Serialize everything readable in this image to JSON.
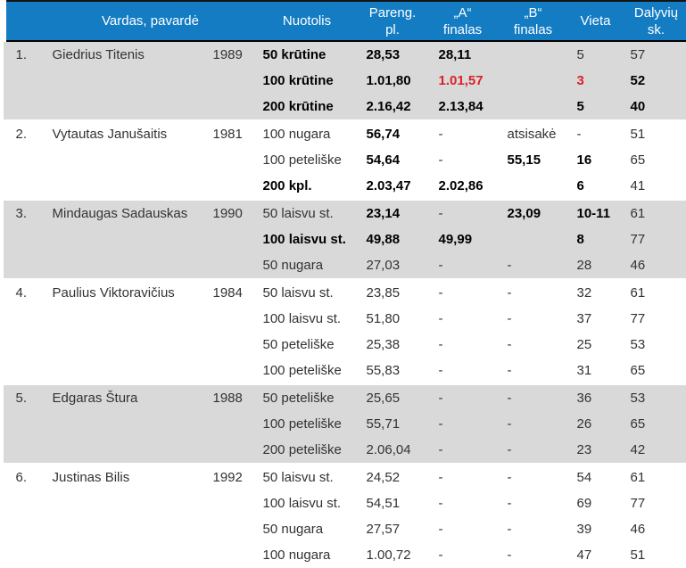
{
  "colors": {
    "header_bg": "#147CC2",
    "header_text": "#FFFFFF",
    "row_alt_bg": "#D9D9D9",
    "row_bg": "#FFFFFF",
    "highlight_red": "#DA2128",
    "divider_black": "#000000"
  },
  "header": {
    "rank": "",
    "name": "Vardas, pavardė",
    "distance": "Nuotolis",
    "prelim": "Pareng.\npl.",
    "a_final": "„A“\nfinalas",
    "b_final": "„B“\nfinalas",
    "place": "Vieta",
    "participants": "Dalyvių\nsk."
  },
  "athletes": [
    {
      "num": "1.",
      "name": "Giedrius Titenis",
      "year": "1989",
      "events": [
        {
          "distance": {
            "text": "50 krūtine",
            "bold": true
          },
          "prelim": {
            "text": "28,53",
            "bold": true
          },
          "a_final": {
            "text": "28,11",
            "bold": true
          },
          "b_final": {
            "text": ""
          },
          "place": {
            "text": "5"
          },
          "participants": {
            "text": "57"
          }
        },
        {
          "distance": {
            "text": "100 krūtine",
            "bold": true
          },
          "prelim": {
            "text": "1.01,80",
            "bold": true
          },
          "a_final": {
            "text": "1.01,57",
            "bold": true,
            "red": true
          },
          "b_final": {
            "text": ""
          },
          "place": {
            "text": "3",
            "bold": true,
            "red": true
          },
          "participants": {
            "text": "52",
            "bold": true
          }
        },
        {
          "distance": {
            "text": "200 krūtine",
            "bold": true
          },
          "prelim": {
            "text": "2.16,42",
            "bold": true
          },
          "a_final": {
            "text": "2.13,84",
            "bold": true
          },
          "b_final": {
            "text": ""
          },
          "place": {
            "text": "5",
            "bold": true
          },
          "participants": {
            "text": "40",
            "bold": true
          }
        }
      ]
    },
    {
      "num": "2.",
      "name": "Vytautas Janušaitis",
      "year": "1981",
      "events": [
        {
          "distance": {
            "text": "100 nugara"
          },
          "prelim": {
            "text": "56,74",
            "bold": true
          },
          "a_final": {
            "text": "-"
          },
          "b_final": {
            "text": "atsisakė"
          },
          "place": {
            "text": "-"
          },
          "participants": {
            "text": "51"
          }
        },
        {
          "distance": {
            "text": "100 peteliške"
          },
          "prelim": {
            "text": "54,64",
            "bold": true
          },
          "a_final": {
            "text": "-"
          },
          "b_final": {
            "text": "55,15",
            "bold": true
          },
          "place": {
            "text": "16",
            "bold": true
          },
          "participants": {
            "text": "65"
          }
        },
        {
          "distance": {
            "text": "200 kpl.",
            "bold": true
          },
          "prelim": {
            "text": "2.03,47",
            "bold": true
          },
          "a_final": {
            "text": "2.02,86",
            "bold": true
          },
          "b_final": {
            "text": ""
          },
          "place": {
            "text": "6",
            "bold": true
          },
          "participants": {
            "text": "41"
          }
        }
      ]
    },
    {
      "num": "3.",
      "name": "Mindaugas Sadauskas",
      "year": "1990",
      "events": [
        {
          "distance": {
            "text": "50 laisvu st."
          },
          "prelim": {
            "text": "23,14",
            "bold": true
          },
          "a_final": {
            "text": "-"
          },
          "b_final": {
            "text": "23,09",
            "bold": true
          },
          "place": {
            "text": "10-11",
            "bold": true
          },
          "participants": {
            "text": "61"
          }
        },
        {
          "distance": {
            "text": "100 laisvu st.",
            "bold": true
          },
          "prelim": {
            "text": "49,88",
            "bold": true
          },
          "a_final": {
            "text": "49,99",
            "bold": true
          },
          "b_final": {
            "text": ""
          },
          "place": {
            "text": "8",
            "bold": true
          },
          "participants": {
            "text": "77"
          }
        },
        {
          "distance": {
            "text": "50 nugara"
          },
          "prelim": {
            "text": "27,03"
          },
          "a_final": {
            "text": "-"
          },
          "b_final": {
            "text": "-"
          },
          "place": {
            "text": "28"
          },
          "participants": {
            "text": "46"
          }
        }
      ]
    },
    {
      "num": "4.",
      "name": "Paulius Viktoravičius",
      "year": "1984",
      "events": [
        {
          "distance": {
            "text": "50 laisvu st."
          },
          "prelim": {
            "text": "23,85"
          },
          "a_final": {
            "text": "-"
          },
          "b_final": {
            "text": "-"
          },
          "place": {
            "text": "32"
          },
          "participants": {
            "text": "61"
          }
        },
        {
          "distance": {
            "text": "100 laisvu st."
          },
          "prelim": {
            "text": "51,80"
          },
          "a_final": {
            "text": "-"
          },
          "b_final": {
            "text": "-"
          },
          "place": {
            "text": "37"
          },
          "participants": {
            "text": "77"
          }
        },
        {
          "distance": {
            "text": "50 peteliške"
          },
          "prelim": {
            "text": "25,38"
          },
          "a_final": {
            "text": "-"
          },
          "b_final": {
            "text": "-"
          },
          "place": {
            "text": "25"
          },
          "participants": {
            "text": "53"
          }
        },
        {
          "distance": {
            "text": "100 peteliške"
          },
          "prelim": {
            "text": "55,83"
          },
          "a_final": {
            "text": "-"
          },
          "b_final": {
            "text": "-"
          },
          "place": {
            "text": "31"
          },
          "participants": {
            "text": "65"
          }
        }
      ]
    },
    {
      "num": "5.",
      "name": "Edgaras Štura",
      "year": "1988",
      "events": [
        {
          "distance": {
            "text": "50 peteliške"
          },
          "prelim": {
            "text": "25,65"
          },
          "a_final": {
            "text": "-"
          },
          "b_final": {
            "text": "-"
          },
          "place": {
            "text": "36"
          },
          "participants": {
            "text": "53"
          }
        },
        {
          "distance": {
            "text": "100 peteliške"
          },
          "prelim": {
            "text": "55,71"
          },
          "a_final": {
            "text": "-"
          },
          "b_final": {
            "text": "-"
          },
          "place": {
            "text": "26"
          },
          "participants": {
            "text": "65"
          }
        },
        {
          "distance": {
            "text": "200 peteliške"
          },
          "prelim": {
            "text": "2.06,04"
          },
          "a_final": {
            "text": "-"
          },
          "b_final": {
            "text": "-"
          },
          "place": {
            "text": "23"
          },
          "participants": {
            "text": "42"
          }
        }
      ]
    },
    {
      "num": "6.",
      "name": "Justinas Bilis",
      "year": "1992",
      "events": [
        {
          "distance": {
            "text": "50 laisvu st."
          },
          "prelim": {
            "text": "24,52"
          },
          "a_final": {
            "text": "-"
          },
          "b_final": {
            "text": "-"
          },
          "place": {
            "text": "54"
          },
          "participants": {
            "text": "61"
          }
        },
        {
          "distance": {
            "text": "100 laisvu st."
          },
          "prelim": {
            "text": "54,51"
          },
          "a_final": {
            "text": "-"
          },
          "b_final": {
            "text": "-"
          },
          "place": {
            "text": "69"
          },
          "participants": {
            "text": "77"
          }
        },
        {
          "distance": {
            "text": "50 nugara"
          },
          "prelim": {
            "text": "27,57"
          },
          "a_final": {
            "text": "-"
          },
          "b_final": {
            "text": "-"
          },
          "place": {
            "text": "39"
          },
          "participants": {
            "text": "46"
          }
        },
        {
          "distance": {
            "text": "100 nugara"
          },
          "prelim": {
            "text": "1.00,72"
          },
          "a_final": {
            "text": "-"
          },
          "b_final": {
            "text": "-"
          },
          "place": {
            "text": "47"
          },
          "participants": {
            "text": "51"
          }
        }
      ]
    }
  ]
}
